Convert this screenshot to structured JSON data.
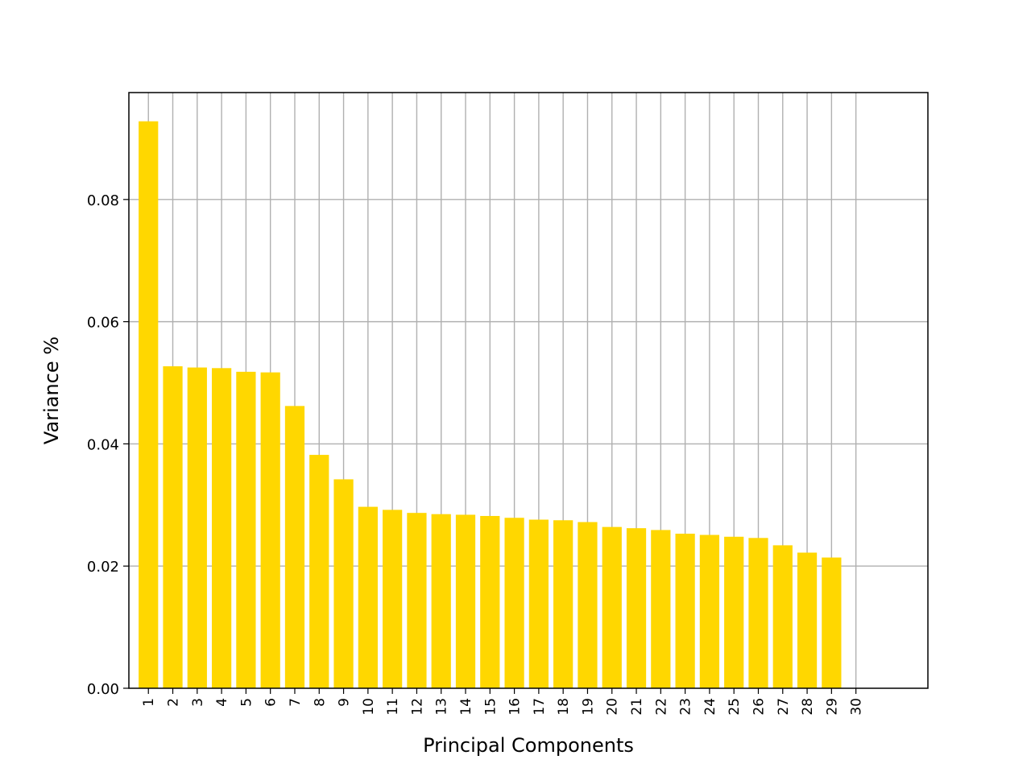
{
  "chart_data": {
    "type": "bar",
    "title": "",
    "xlabel": "Principal Components",
    "ylabel": "Variance %",
    "categories": [
      "1",
      "2",
      "3",
      "4",
      "5",
      "6",
      "7",
      "8",
      "9",
      "10",
      "11",
      "12",
      "13",
      "14",
      "15",
      "16",
      "17",
      "18",
      "19",
      "20",
      "21",
      "22",
      "23",
      "24",
      "25",
      "26",
      "27",
      "28",
      "29",
      "30"
    ],
    "values": [
      0.0928,
      0.0527,
      0.0525,
      0.0524,
      0.0518,
      0.0517,
      0.0462,
      0.0382,
      0.0342,
      0.0297,
      0.0292,
      0.0287,
      0.0285,
      0.0284,
      0.0282,
      0.0279,
      0.0276,
      0.0275,
      0.0272,
      0.0264,
      0.0262,
      0.0259,
      0.0253,
      0.0251,
      0.0248,
      0.0246,
      0.0234,
      0.0222,
      0.0214,
      0.0
    ],
    "yticks": [
      0.0,
      0.02,
      0.04,
      0.06,
      0.08
    ],
    "ytick_labels": [
      "0.00",
      "0.02",
      "0.04",
      "0.06",
      "0.08"
    ],
    "ylim": [
      0,
      0.0975
    ],
    "xlim": [
      0.2,
      32.95
    ],
    "grid": true,
    "bar_color": "#FFD700",
    "grid_color": "#b0b0b0"
  }
}
